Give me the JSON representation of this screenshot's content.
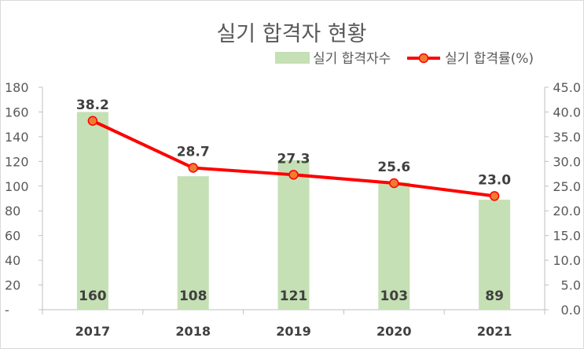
{
  "chart_data": {
    "type": "bar",
    "title": "실기 합격자 현황",
    "categories": [
      "2017",
      "2018",
      "2019",
      "2020",
      "2021"
    ],
    "series": [
      {
        "name": "실기 합격자수",
        "type": "bar",
        "axis": "left",
        "values": [
          160,
          108,
          121,
          103,
          89
        ],
        "color": "#c5e0b4"
      },
      {
        "name": "실기 합격률(%)",
        "type": "line",
        "axis": "right",
        "values": [
          38.2,
          28.7,
          27.3,
          25.6,
          23.0
        ],
        "color": "#ff0000",
        "marker_fill": "#ed7d31"
      }
    ],
    "left_axis": {
      "ylim": [
        0,
        180
      ],
      "ticks": [
        0,
        20,
        40,
        60,
        80,
        100,
        120,
        140,
        160,
        180
      ],
      "tick_labels": [
        "-",
        "20",
        "40",
        "60",
        "80",
        "100",
        "120",
        "140",
        "160",
        "180"
      ]
    },
    "right_axis": {
      "ylim": [
        0,
        45
      ],
      "ticks": [
        0,
        5,
        10,
        15,
        20,
        25,
        30,
        35,
        40,
        45
      ],
      "tick_labels": [
        "0.0",
        "5.0",
        "10.0",
        "15.0",
        "20.0",
        "25.0",
        "30.0",
        "35.0",
        "40.0",
        "45.0"
      ]
    },
    "bar_labels": [
      "160",
      "108",
      "121",
      "103",
      "89"
    ],
    "line_labels": [
      "38.2",
      "28.7",
      "27.3",
      "25.6",
      "23.0"
    ],
    "legend_position": "top-right",
    "grid": false,
    "axis_color": "#bfbfbf"
  }
}
